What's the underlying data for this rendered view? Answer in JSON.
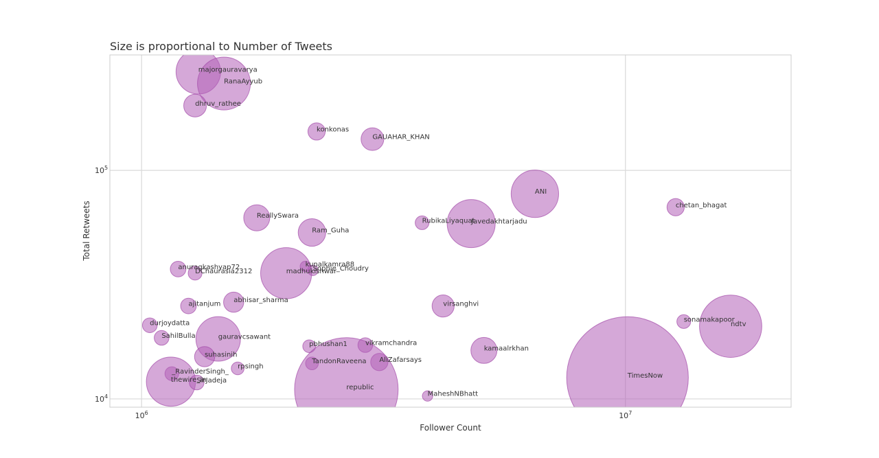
{
  "chart_data": {
    "type": "scatter",
    "title": "Size is proportional to Number of Tweets",
    "xlabel": "Follower Count",
    "ylabel": "Total Retweets",
    "xscale": "log",
    "yscale": "log",
    "xlim": [
      860000,
      22000000
    ],
    "ylim": [
      9200,
      320000
    ],
    "xticks": [
      {
        "base": "10",
        "exp": "6",
        "value": 1000000
      },
      {
        "base": "10",
        "exp": "7",
        "value": 10000000
      }
    ],
    "yticks": [
      {
        "base": "10",
        "exp": "4",
        "value": 10000
      },
      {
        "base": "10",
        "exp": "5",
        "value": 100000
      }
    ],
    "grid": true,
    "color": "#b360b8",
    "size_encoding": "Number of Tweets",
    "points": [
      {
        "label": "majorgauravarya",
        "x": 1310000,
        "y": 270000,
        "size": 730
      },
      {
        "label": "RanaAyyub",
        "x": 1480000,
        "y": 240000,
        "size": 1030
      },
      {
        "label": "dhruv_rathee",
        "x": 1290000,
        "y": 192000,
        "size": 190
      },
      {
        "label": "konkonas",
        "x": 2300000,
        "y": 148000,
        "size": 110
      },
      {
        "label": "GAUAHAR_KHAN",
        "x": 3000000,
        "y": 137000,
        "size": 190
      },
      {
        "label": "ANI",
        "x": 6500000,
        "y": 79000,
        "size": 830
      },
      {
        "label": "chetan_bhagat",
        "x": 12700000,
        "y": 69000,
        "size": 110
      },
      {
        "label": "ReallySwara",
        "x": 1730000,
        "y": 62000,
        "size": 250
      },
      {
        "label": "RubikaLiyaquat",
        "x": 3800000,
        "y": 59000,
        "size": 70
      },
      {
        "label": "Javedakhtarjadu",
        "x": 4800000,
        "y": 58500,
        "size": 850
      },
      {
        "label": "Ram_Guha",
        "x": 2250000,
        "y": 53500,
        "size": 280
      },
      {
        "label": "kunalkamra88",
        "x": 2180000,
        "y": 38000,
        "size": 40
      },
      {
        "label": "Sophie_Choudry",
        "x": 2260000,
        "y": 36500,
        "size": 40
      },
      {
        "label": "anuragkashyap72",
        "x": 1190000,
        "y": 37000,
        "size": 90
      },
      {
        "label": "DChaurasia2312",
        "x": 1290000,
        "y": 35500,
        "size": 70
      },
      {
        "label": "madhukishwar",
        "x": 1990000,
        "y": 35500,
        "size": 960
      },
      {
        "label": "abhisar_sharma",
        "x": 1550000,
        "y": 26500,
        "size": 150
      },
      {
        "label": "ajitanjum",
        "x": 1250000,
        "y": 25500,
        "size": 90
      },
      {
        "label": "virsanghvi",
        "x": 4200000,
        "y": 25500,
        "size": 180
      },
      {
        "label": "durjoydatta",
        "x": 1040000,
        "y": 21000,
        "size": 80
      },
      {
        "label": "sonamakapoor",
        "x": 13200000,
        "y": 21800,
        "size": 70
      },
      {
        "label": "ndtv",
        "x": 16500000,
        "y": 20800,
        "size": 1430
      },
      {
        "label": "SahilBulla",
        "x": 1100000,
        "y": 18500,
        "size": 80
      },
      {
        "label": "gauravcsawant",
        "x": 1440000,
        "y": 18300,
        "size": 730
      },
      {
        "label": "pbhushan1",
        "x": 2220000,
        "y": 17000,
        "size": 60
      },
      {
        "label": "vikramchandra",
        "x": 2900000,
        "y": 17200,
        "size": 80
      },
      {
        "label": "kamaalrkhan",
        "x": 5100000,
        "y": 16300,
        "size": 250
      },
      {
        "label": "suhasinih",
        "x": 1350000,
        "y": 15300,
        "size": 150
      },
      {
        "label": "TandonRaveena",
        "x": 2250000,
        "y": 14300,
        "size": 60
      },
      {
        "label": "AliZafarsays",
        "x": 3100000,
        "y": 14500,
        "size": 110
      },
      {
        "label": "rpsingh",
        "x": 1580000,
        "y": 13600,
        "size": 60
      },
      {
        "label": "_RavinderSingh_",
        "x": 1155000,
        "y": 12900,
        "size": 70
      },
      {
        "label": "republic",
        "x": 2650000,
        "y": 11000,
        "size": 3950
      },
      {
        "label": "TimesNow",
        "x": 10100000,
        "y": 12400,
        "size": 5450
      },
      {
        "label": "thewire_in",
        "x": 1150000,
        "y": 11900,
        "size": 890
      },
      {
        "label": "SirJadeja",
        "x": 1300000,
        "y": 11800,
        "size": 80
      },
      {
        "label": "MaheshNBhatt",
        "x": 3900000,
        "y": 10300,
        "size": 40
      }
    ]
  }
}
